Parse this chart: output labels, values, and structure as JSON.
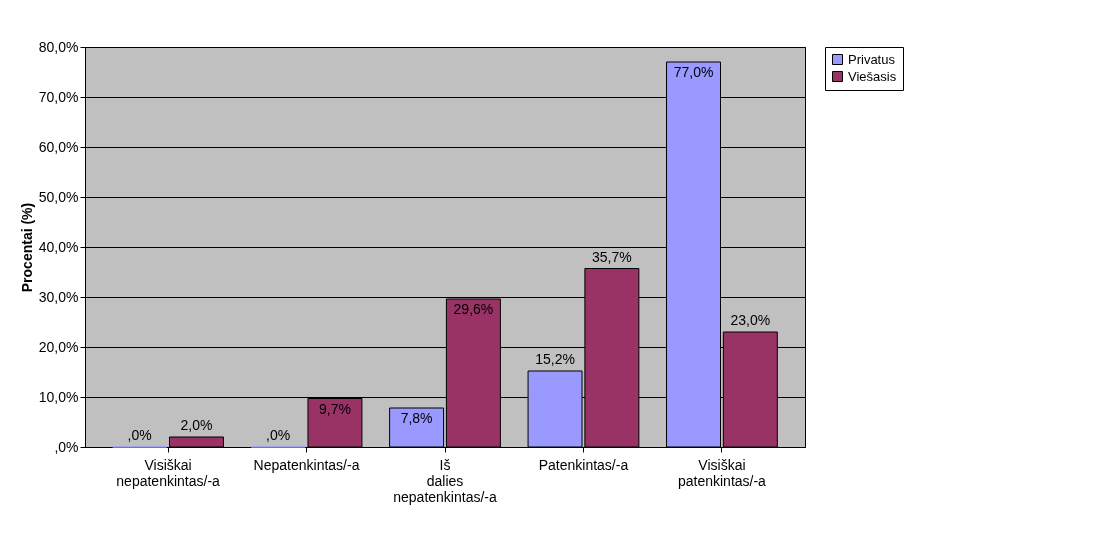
{
  "chart_data": {
    "type": "bar",
    "ylabel": "Procentai (%)",
    "categories": [
      "Visiškai nepatenkintas/-a",
      "Nepatenkintas/-a",
      "Iš dalies nepatenkintas/-a",
      "Patenkintas/-a",
      "Visiškai patenkintas/-a"
    ],
    "series": [
      {
        "name": "Privatus",
        "color": "#9999ff",
        "values": [
          0,
          0,
          7.8,
          15.2,
          77.0
        ],
        "value_labels": [
          ",0%",
          ",0%",
          "7,8%",
          "15,2%",
          "77,0%"
        ]
      },
      {
        "name": "Viešasis",
        "color": "#993366",
        "values": [
          2.0,
          9.7,
          29.6,
          35.7,
          23.0
        ],
        "value_labels": [
          "2,0%",
          "9,7%",
          "29,6%",
          "35,7%",
          "23,0%"
        ]
      }
    ],
    "ylim": [
      0,
      80
    ],
    "yticks": [
      {
        "value": 0,
        "label": ",0%"
      },
      {
        "value": 10,
        "label": "10,0%"
      },
      {
        "value": 20,
        "label": "20,0%"
      },
      {
        "value": 30,
        "label": "30,0%"
      },
      {
        "value": 40,
        "label": "40,0%"
      },
      {
        "value": 50,
        "label": "50,0%"
      },
      {
        "value": 60,
        "label": "60,0%"
      },
      {
        "value": 70,
        "label": "70,0%"
      },
      {
        "value": 80,
        "label": "80,0%"
      }
    ],
    "grid": "y",
    "legend": "right"
  }
}
